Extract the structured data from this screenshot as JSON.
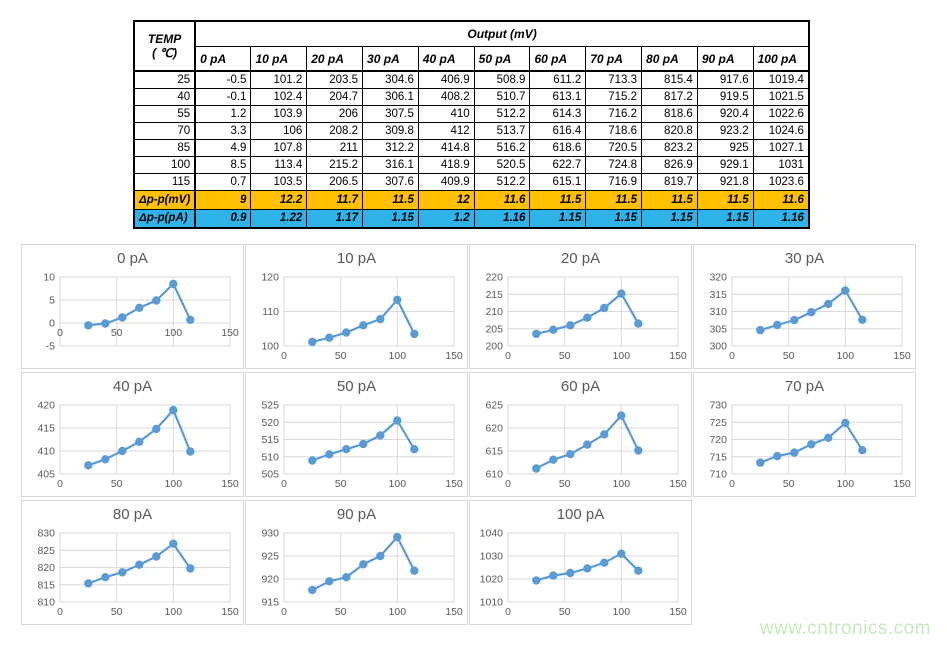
{
  "watermark": {
    "text": "www.cntronics.com",
    "color": "#c7e9bd"
  },
  "table": {
    "temp_label": "TEMP",
    "temp_unit": "( ℃)",
    "output_label": "Output (mV)",
    "columns": [
      "0 pA",
      "10 pA",
      "20 pA",
      "30 pA",
      "40 pA",
      "50 pA",
      "60 pA",
      "70 pA",
      "80 pA",
      "90 pA",
      "100 pA"
    ],
    "rows": [
      {
        "temp": "25",
        "values": [
          "-0.5",
          "101.2",
          "203.5",
          "304.6",
          "406.9",
          "508.9",
          "611.2",
          "713.3",
          "815.4",
          "917.6",
          "1019.4"
        ]
      },
      {
        "temp": "40",
        "values": [
          "-0.1",
          "102.4",
          "204.7",
          "306.1",
          "408.2",
          "510.7",
          "613.1",
          "715.2",
          "817.2",
          "919.5",
          "1021.5"
        ]
      },
      {
        "temp": "55",
        "values": [
          "1.2",
          "103.9",
          "206",
          "307.5",
          "410",
          "512.2",
          "614.3",
          "716.2",
          "818.6",
          "920.4",
          "1022.6"
        ]
      },
      {
        "temp": "70",
        "values": [
          "3.3",
          "106",
          "208.2",
          "309.8",
          "412",
          "513.7",
          "616.4",
          "718.6",
          "820.8",
          "923.2",
          "1024.6"
        ]
      },
      {
        "temp": "85",
        "values": [
          "4.9",
          "107.8",
          "211",
          "312.2",
          "414.8",
          "516.2",
          "618.6",
          "720.5",
          "823.2",
          "925",
          "1027.1"
        ]
      },
      {
        "temp": "100",
        "values": [
          "8.5",
          "113.4",
          "215.2",
          "316.1",
          "418.9",
          "520.5",
          "622.7",
          "724.8",
          "826.9",
          "929.1",
          "1031"
        ]
      },
      {
        "temp": "115",
        "values": [
          "0.7",
          "103.5",
          "206.5",
          "307.6",
          "409.9",
          "512.2",
          "615.1",
          "716.9",
          "819.7",
          "921.8",
          "1023.6"
        ]
      }
    ],
    "delta_rows": [
      {
        "label": "Δp-p(mV)",
        "bg": "#ffc000",
        "values": [
          "9",
          "12.2",
          "11.7",
          "11.5",
          "12",
          "11.6",
          "11.5",
          "11.5",
          "11.5",
          "11.5",
          "11.6"
        ]
      },
      {
        "label": "Δp-p(pA)",
        "bg": "#2eb3e8",
        "values": [
          "0.9",
          "1.22",
          "1.17",
          "1.15",
          "1.2",
          "1.16",
          "1.15",
          "1.15",
          "1.15",
          "1.15",
          "1.16"
        ]
      }
    ]
  },
  "chart_style": {
    "line_color": "#5b9bd5",
    "grid_color": "#d9d9d9",
    "tick_color": "#595959",
    "title_color": "#595959"
  },
  "chart_data": [
    {
      "type": "line",
      "title": "0 pA",
      "x": [
        25,
        40,
        55,
        70,
        85,
        100,
        115
      ],
      "values": [
        -0.5,
        -0.1,
        1.2,
        3.3,
        4.9,
        8.5,
        0.7
      ],
      "ylim": [
        -5,
        10
      ],
      "ystep": 5,
      "xlim": [
        0,
        150
      ],
      "xticks": [
        0,
        50,
        100,
        150
      ]
    },
    {
      "type": "line",
      "title": "10 pA",
      "x": [
        25,
        40,
        55,
        70,
        85,
        100,
        115
      ],
      "values": [
        101.2,
        102.4,
        103.9,
        106,
        107.8,
        113.4,
        103.5
      ],
      "ylim": [
        100,
        120
      ],
      "ystep": 10,
      "xlim": [
        0,
        150
      ],
      "xticks": [
        0,
        50,
        100,
        150
      ]
    },
    {
      "type": "line",
      "title": "20 pA",
      "x": [
        25,
        40,
        55,
        70,
        85,
        100,
        115
      ],
      "values": [
        203.5,
        204.7,
        206,
        208.2,
        211,
        215.2,
        206.5
      ],
      "ylim": [
        200,
        220
      ],
      "ystep": 5,
      "xlim": [
        0,
        150
      ],
      "xticks": [
        0,
        50,
        100,
        150
      ]
    },
    {
      "type": "line",
      "title": "30 pA",
      "x": [
        25,
        40,
        55,
        70,
        85,
        100,
        115
      ],
      "values": [
        304.6,
        306.1,
        307.5,
        309.8,
        312.2,
        316.1,
        307.6
      ],
      "ylim": [
        300,
        320
      ],
      "ystep": 5,
      "xlim": [
        0,
        150
      ],
      "xticks": [
        0,
        50,
        100,
        150
      ]
    },
    {
      "type": "line",
      "title": "40 pA",
      "x": [
        25,
        40,
        55,
        70,
        85,
        100,
        115
      ],
      "values": [
        406.9,
        408.2,
        410,
        412,
        414.8,
        418.9,
        409.9
      ],
      "ylim": [
        405,
        420
      ],
      "ystep": 5,
      "xlim": [
        0,
        150
      ],
      "xticks": [
        0,
        50,
        100,
        150
      ]
    },
    {
      "type": "line",
      "title": "50 pA",
      "x": [
        25,
        40,
        55,
        70,
        85,
        100,
        115
      ],
      "values": [
        508.9,
        510.7,
        512.2,
        513.7,
        516.2,
        520.5,
        512.2
      ],
      "ylim": [
        505,
        525
      ],
      "ystep": 5,
      "xlim": [
        0,
        150
      ],
      "xticks": [
        0,
        50,
        100,
        150
      ]
    },
    {
      "type": "line",
      "title": "60 pA",
      "x": [
        25,
        40,
        55,
        70,
        85,
        100,
        115
      ],
      "values": [
        611.2,
        613.1,
        614.3,
        616.4,
        618.6,
        622.7,
        615.1
      ],
      "ylim": [
        610,
        625
      ],
      "ystep": 5,
      "xlim": [
        0,
        150
      ],
      "xticks": [
        0,
        50,
        100,
        150
      ]
    },
    {
      "type": "line",
      "title": "70 pA",
      "x": [
        25,
        40,
        55,
        70,
        85,
        100,
        115
      ],
      "values": [
        713.3,
        715.2,
        716.2,
        718.6,
        720.5,
        724.8,
        716.9
      ],
      "ylim": [
        710,
        730
      ],
      "ystep": 5,
      "xlim": [
        0,
        150
      ],
      "xticks": [
        0,
        50,
        100,
        150
      ]
    },
    {
      "type": "line",
      "title": "80 pA",
      "x": [
        25,
        40,
        55,
        70,
        85,
        100,
        115
      ],
      "values": [
        815.4,
        817.2,
        818.6,
        820.8,
        823.2,
        826.9,
        819.7
      ],
      "ylim": [
        810,
        830
      ],
      "ystep": 5,
      "xlim": [
        0,
        150
      ],
      "xticks": [
        0,
        50,
        100,
        150
      ]
    },
    {
      "type": "line",
      "title": "90 pA",
      "x": [
        25,
        40,
        55,
        70,
        85,
        100,
        115
      ],
      "values": [
        917.6,
        919.5,
        920.4,
        923.2,
        925,
        929.1,
        921.8
      ],
      "ylim": [
        915,
        930
      ],
      "ystep": 5,
      "xlim": [
        0,
        150
      ],
      "xticks": [
        0,
        50,
        100,
        150
      ]
    },
    {
      "type": "line",
      "title": "100 pA",
      "x": [
        25,
        40,
        55,
        70,
        85,
        100,
        115
      ],
      "values": [
        1019.4,
        1021.5,
        1022.6,
        1024.6,
        1027.1,
        1031,
        1023.6
      ],
      "ylim": [
        1010,
        1040
      ],
      "ystep": 10,
      "xlim": [
        0,
        150
      ],
      "xticks": [
        0,
        50,
        100,
        150
      ]
    }
  ]
}
